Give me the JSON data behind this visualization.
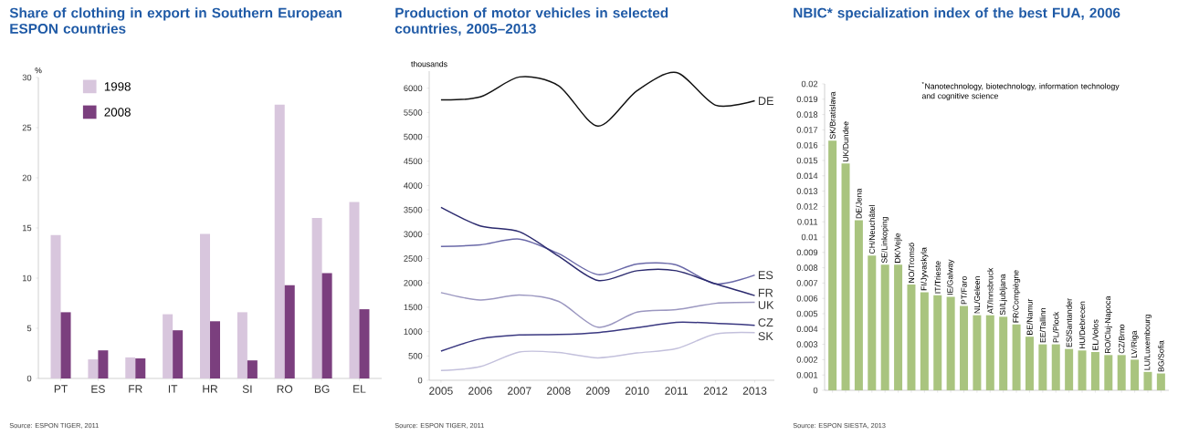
{
  "chart_data": [
    {
      "type": "bar",
      "title": "Share of clothing in export in Southern European ESPON countries",
      "ylabel": "%",
      "categories": [
        "PT",
        "ES",
        "FR",
        "IT",
        "HR",
        "SI",
        "RO",
        "BG",
        "EL"
      ],
      "series": [
        {
          "name": "1998",
          "color": "#d8c6dd",
          "values": [
            14.3,
            1.9,
            2.1,
            6.4,
            14.4,
            6.6,
            27.3,
            16,
            17.6
          ]
        },
        {
          "name": "2008",
          "color": "#7b3f7e",
          "values": [
            6.6,
            2.8,
            2.0,
            4.8,
            5.7,
            1.8,
            9.3,
            10.5,
            6.9
          ]
        }
      ],
      "ylim": [
        0,
        30
      ],
      "yticks": [
        0,
        5,
        10,
        15,
        20,
        25,
        30
      ],
      "legend": "top left",
      "annotations": [
        "Source: ESPON TIGER, 2011"
      ]
    },
    {
      "type": "line",
      "title": "Production of motor vehicles in selected countries, 2005–2013",
      "ylabel": "thousands",
      "x": [
        2005,
        2006,
        2007,
        2008,
        2009,
        2010,
        2011,
        2012,
        2013
      ],
      "series": [
        {
          "name": "DE",
          "color": "#111111",
          "values": [
            5760,
            5820,
            6230,
            6050,
            5220,
            5950,
            6320,
            5650,
            5740
          ]
        },
        {
          "name": "ES",
          "color": "#6a69a8",
          "values": [
            2750,
            2780,
            2900,
            2600,
            2170,
            2390,
            2370,
            1980,
            2160
          ]
        },
        {
          "name": "FR",
          "color": "#2b2a6e",
          "values": [
            3550,
            3170,
            3050,
            2550,
            2050,
            2250,
            2250,
            1980,
            1740
          ]
        },
        {
          "name": "UK",
          "color": "#9b97c0",
          "values": [
            1800,
            1650,
            1750,
            1620,
            1090,
            1400,
            1450,
            1580,
            1600
          ]
        },
        {
          "name": "CZ",
          "color": "#3a3880",
          "values": [
            600,
            850,
            930,
            940,
            980,
            1080,
            1190,
            1170,
            1130
          ]
        },
        {
          "name": "SK",
          "color": "#c3c0dc",
          "values": [
            200,
            280,
            580,
            570,
            460,
            560,
            650,
            950,
            980
          ]
        }
      ],
      "xlim": [
        2004.7,
        2013.5
      ],
      "xticks": [
        2005,
        2006,
        2007,
        2008,
        2009,
        2010,
        2011,
        2012,
        2013
      ],
      "ylim": [
        0,
        6350
      ],
      "yticks": [
        0,
        500,
        1000,
        1500,
        2000,
        2500,
        3000,
        3500,
        4000,
        4500,
        5000,
        5500,
        6000
      ],
      "annotations": [
        "Source: ESPON TIGER, 2011"
      ]
    },
    {
      "type": "bar",
      "title": "NBIC* specialization index of the best FUA, 2006",
      "categories": [
        "SK/Bratislava",
        "UK/Dundee",
        "DE/Jena",
        "CH/Neuchâtel",
        "SE/Linkoping",
        "DK/Vejle",
        "NO/Tromsö",
        "FI/Jyvaskyla",
        "IT/Trieste",
        "IE/Galway",
        "PT/Faro",
        "NL/Geleen",
        "AT/Innsbruck",
        "SI/Ljubljana",
        "FR/Compiègne",
        "BE/Namur",
        "EE/Tallinn",
        "PL/Plock",
        "ES/Santander",
        "HU/Debrecen",
        "EL/Volos",
        "RO/Cluj-Napoca",
        "CZ/Brno",
        "LV/Riga",
        "LU/Luxembourg",
        "BG/Sofia"
      ],
      "values": [
        0.0163,
        0.0148,
        0.0111,
        0.0088,
        0.0082,
        0.0082,
        0.0069,
        0.0064,
        0.0062,
        0.0061,
        0.0055,
        0.0049,
        0.0049,
        0.0048,
        0.0043,
        0.0035,
        0.003,
        0.003,
        0.0027,
        0.0026,
        0.0025,
        0.0023,
        0.0023,
        0.002,
        0.0012,
        0.0011
      ],
      "color": "#a9c47f",
      "ylim": [
        0,
        0.02
      ],
      "yticks": [
        0,
        0.001,
        0.002,
        0.003,
        0.004,
        0.005,
        0.006,
        0.007,
        0.008,
        0.009,
        0.01,
        0.011,
        0.012,
        0.013,
        0.014,
        0.015,
        0.016,
        0.017,
        0.018,
        0.019,
        0.02
      ],
      "annotations": [
        "$^{*}$Nanotechnology, biotechnology, information technology and cognitive science",
        "Source: ESPON SIESTA, 2013"
      ]
    }
  ]
}
